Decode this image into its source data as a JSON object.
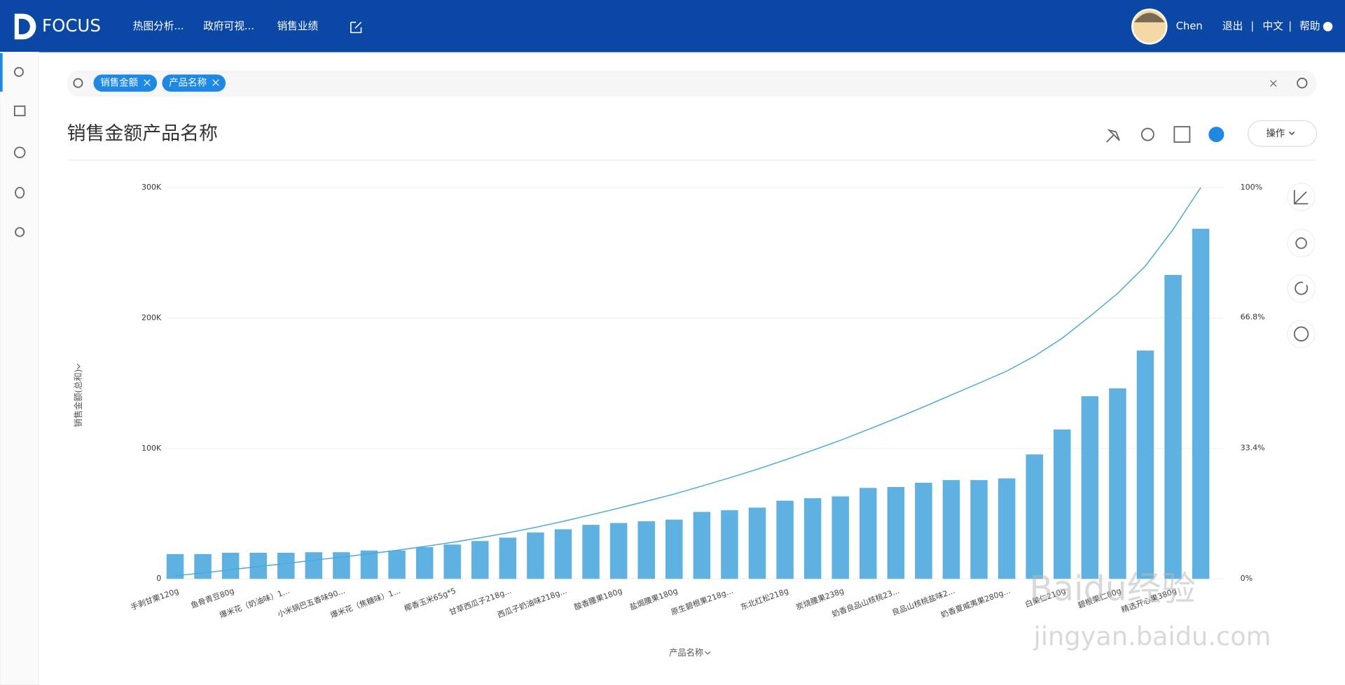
{
  "header": {
    "logo": "FOCUS",
    "nav": [
      "热图分析...",
      "政府可视...",
      "销售业绩"
    ],
    "user": "Chen",
    "links": [
      "退出",
      "中文",
      "帮助"
    ]
  },
  "search": {
    "tags": [
      "销售金额",
      "产品名称"
    ]
  },
  "title": "销售金额产品名称",
  "action": "操作",
  "watermark": [
    "Baidu经验",
    "jingyan.baidu.com"
  ],
  "chart_data": {
    "type": "bar",
    "x_label": "产品名称",
    "y_label": "销售金额(总和)",
    "categories": [
      "手剥甘栗120g",
      null,
      "鱼骨青豆80g",
      null,
      "爆米花（奶油味）1...",
      null,
      "小米锅巴五香味90...",
      null,
      "爆米花（焦糖味）1...",
      null,
      "椰香玉米65g*5",
      null,
      "甘草西瓜子218g...",
      null,
      "西瓜子奶油味218g...",
      null,
      "酸香腰果180g",
      null,
      "盐焗腰果180g",
      null,
      "原生碧根果218g...",
      null,
      "东北红松218g",
      null,
      "炭烧腰果238g",
      null,
      "奶香良品山核桃23...",
      null,
      "良品山核桃盐味2...",
      null,
      "奶香夏威夷果280g...",
      null,
      "白果仁210g",
      null,
      "碧根果仁80g",
      null,
      "精选开心果380g",
      null
    ],
    "series": [
      {
        "color": "#5eb1e1",
        "values": [
          19000,
          19000,
          20000,
          20000,
          20000,
          20400,
          20400,
          21700,
          21700,
          24300,
          26300,
          29000,
          31600,
          35500,
          38000,
          41400,
          42800,
          44100,
          45400,
          51300,
          52600,
          54600,
          59900,
          61800,
          63200,
          69700,
          70400,
          73700,
          75700,
          75700,
          77000,
          95400,
          114500,
          140000,
          146000,
          175000,
          233000,
          268400
        ]
      },
      {
        "type": "line",
        "axis": "y2",
        "color": "#4aa8dc",
        "values": [
          0.76,
          1.52,
          2.32,
          3.12,
          3.92,
          4.74,
          5.56,
          6.42,
          7.29,
          8.27,
          9.32,
          10.48,
          11.74,
          13.16,
          14.68,
          16.34,
          18.05,
          19.82,
          21.64,
          23.69,
          25.8,
          27.98,
          30.38,
          32.85,
          35.38,
          38.17,
          40.99,
          43.94,
          46.97,
          50,
          53.08,
          56.9,
          61.48,
          67.08,
          72.93,
          79.93,
          89.26,
          100
        ]
      }
    ],
    "ylim": [
      0,
      300000
    ],
    "yticks": [
      0,
      {
        "value": 100000,
        "label": "100K"
      },
      {
        "value": 200000,
        "label": "200K"
      },
      {
        "value": 300000,
        "label": "300K"
      }
    ],
    "y2lim": [
      0,
      100
    ],
    "y2ticks": [
      {
        "value": 0,
        "label": "0%"
      },
      {
        "value": 33.4,
        "label": "33.4%"
      },
      {
        "value": 66.8,
        "label": "66.8%"
      },
      {
        "value": 100,
        "label": "100%"
      }
    ],
    "grid": true
  }
}
